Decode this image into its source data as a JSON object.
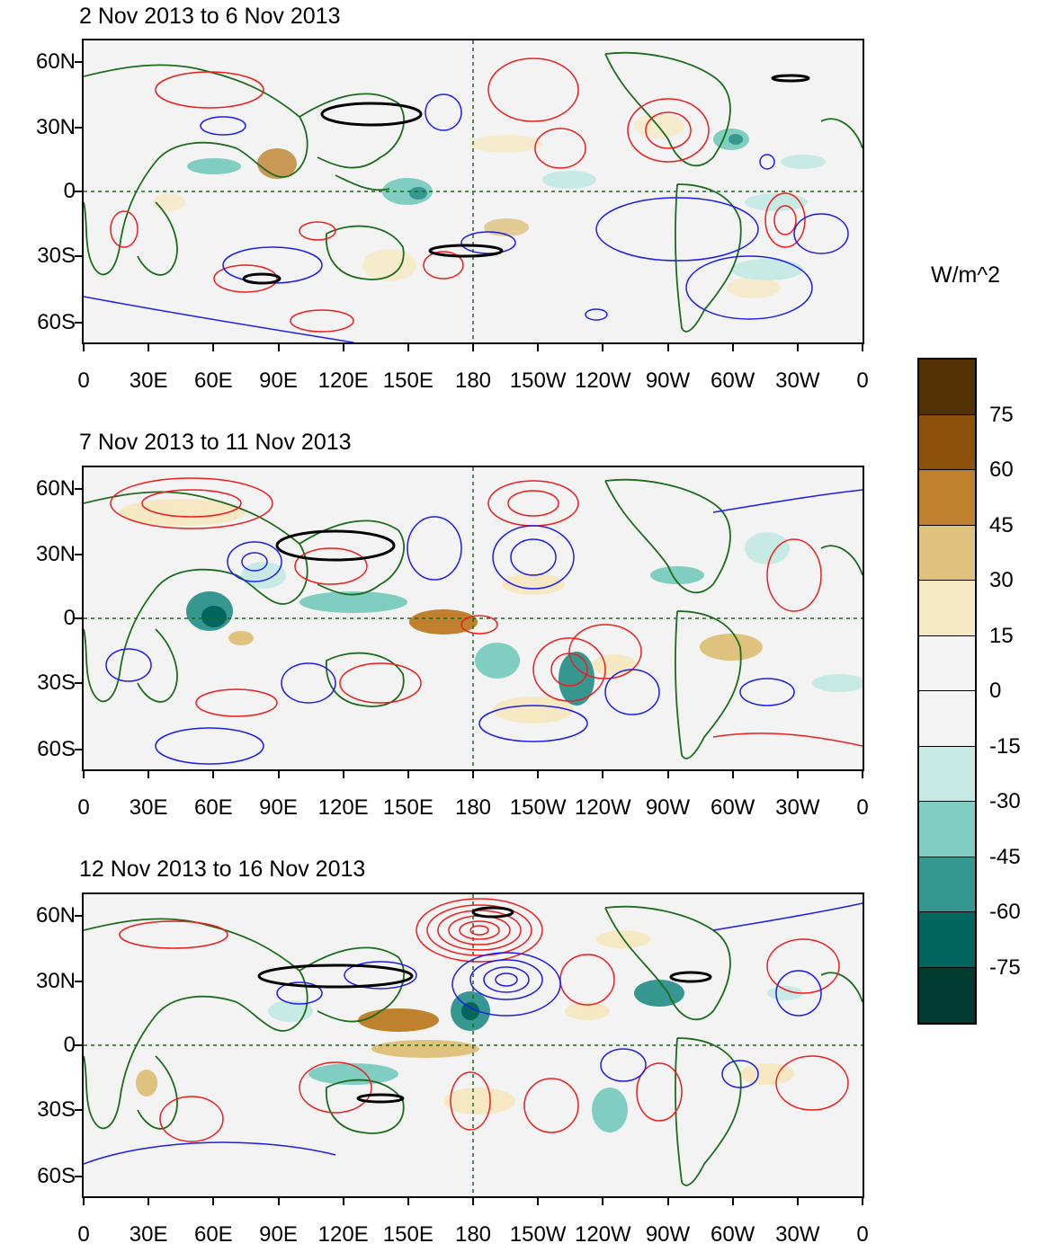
{
  "panels": [
    {
      "title": "2 Nov 2013 to 6 Nov 2013"
    },
    {
      "title": "7 Nov 2013 to 11 Nov 2013"
    },
    {
      "title": "12 Nov 2013 to 16 Nov 2013"
    }
  ],
  "lat_labels": [
    "60N",
    "30N",
    "0",
    "30S",
    "60S"
  ],
  "lon_labels": [
    "0",
    "30E",
    "60E",
    "90E",
    "120E",
    "150E",
    "180",
    "150W",
    "120W",
    "90W",
    "60W",
    "30W",
    "0"
  ],
  "colorbar": {
    "units": "W/m^2",
    "colors": [
      "#543005",
      "#8c510a",
      "#bf812d",
      "#dfc27d",
      "#f6e8c3",
      "#f4f4f4",
      "#f4f4f4",
      "#c7eae5",
      "#80cdc1",
      "#35978f",
      "#01665e",
      "#003c30"
    ],
    "labels": [
      "75",
      "60",
      "45",
      "30",
      "15",
      "0",
      "-15",
      "-30",
      "-45",
      "-60",
      "-75"
    ]
  },
  "contour_colors": {
    "positive": "#ee1c1c",
    "negative": "#1c1cee",
    "land": "#1d6b1d",
    "highlight": "#000000"
  }
}
